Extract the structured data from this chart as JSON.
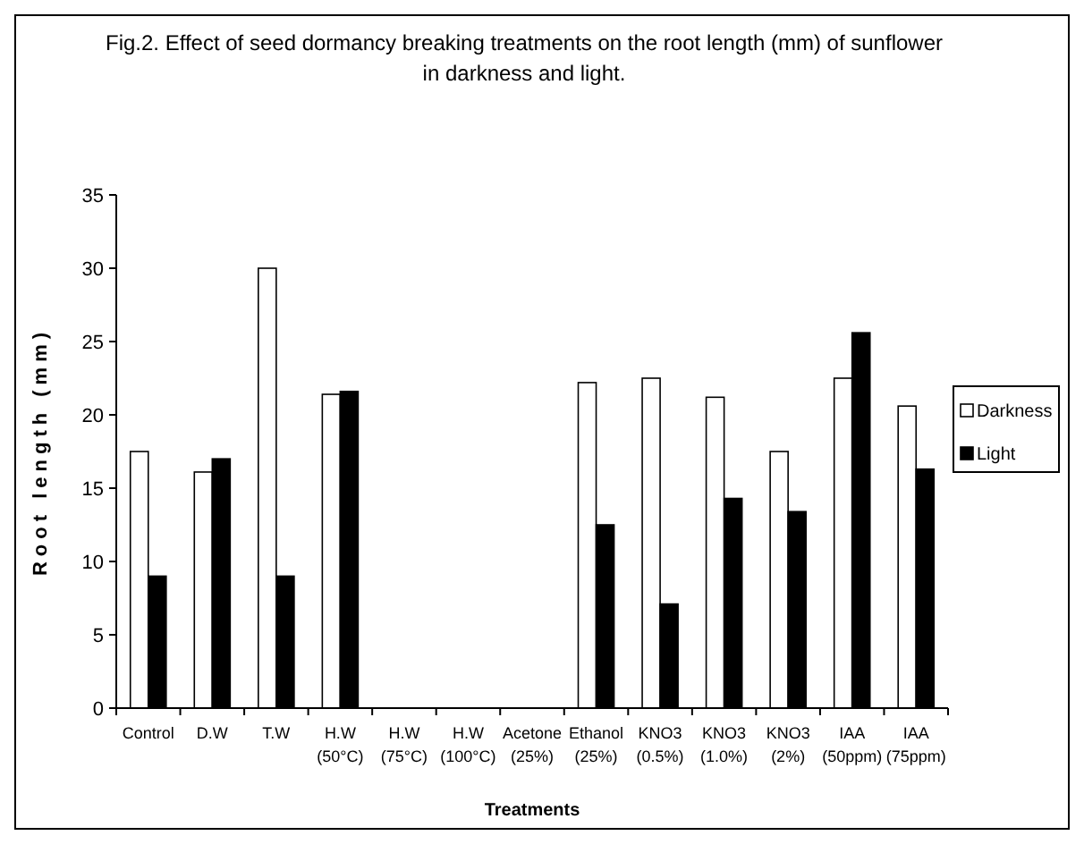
{
  "chart_data": {
    "type": "bar",
    "title": "Fig.2. Effect of seed dormancy breaking treatments on the root length (mm) of sunflower in darkness and light.",
    "xlabel": "Treatments",
    "ylabel": "Root length (mm)",
    "categories": [
      "Control",
      "D.W",
      "T.W",
      "H.W\n(50°C)",
      "H.W\n(75°C)",
      "H.W\n(100°C)",
      "Acetone\n(25%)",
      "Ethanol\n(25%)",
      "KNO3\n(0.5%)",
      "KNO3\n(1.0%)",
      "KNO3\n(2%)",
      "IAA\n(50ppm)",
      "IAA\n(75ppm)"
    ],
    "series": [
      {
        "name": "Darkness",
        "color": "#ffffff",
        "values": [
          17.5,
          16.1,
          30,
          21.4,
          null,
          null,
          null,
          22.2,
          22.5,
          21.2,
          17.5,
          22.5,
          20.6
        ]
      },
      {
        "name": "Light",
        "color": "#000000",
        "values": [
          9,
          17,
          9,
          21.6,
          null,
          null,
          null,
          12.5,
          7.1,
          14.3,
          13.4,
          25.6,
          16.3
        ]
      }
    ],
    "ylim": [
      0,
      35
    ],
    "yticks": [
      0,
      5,
      10,
      15,
      20,
      25,
      30,
      35
    ],
    "grid": false,
    "legend": "right"
  }
}
